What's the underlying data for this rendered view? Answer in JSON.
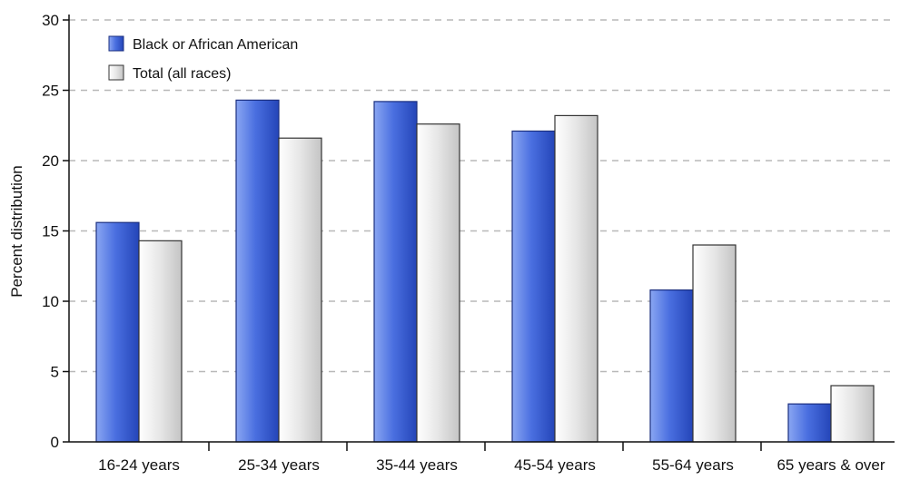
{
  "chart_data": {
    "type": "bar",
    "title": "",
    "xlabel": "",
    "ylabel": "Percent distribution",
    "ylim": [
      0,
      30
    ],
    "yticks": [
      0,
      5,
      10,
      15,
      20,
      25,
      30
    ],
    "grid": true,
    "legend_position": "top-left",
    "categories": [
      "16-24 years",
      "25-34 years",
      "35-44 years",
      "45-54 years",
      "55-64 years",
      "65 years & over"
    ],
    "series": [
      {
        "name": "Black or African American",
        "color": "#3a5fd0",
        "values": [
          15.6,
          24.3,
          24.2,
          22.1,
          10.8,
          2.7
        ]
      },
      {
        "name": "Total (all races)",
        "color": "#dcdcdc",
        "values": [
          14.3,
          21.6,
          22.6,
          23.2,
          14.0,
          4.0
        ]
      }
    ]
  }
}
